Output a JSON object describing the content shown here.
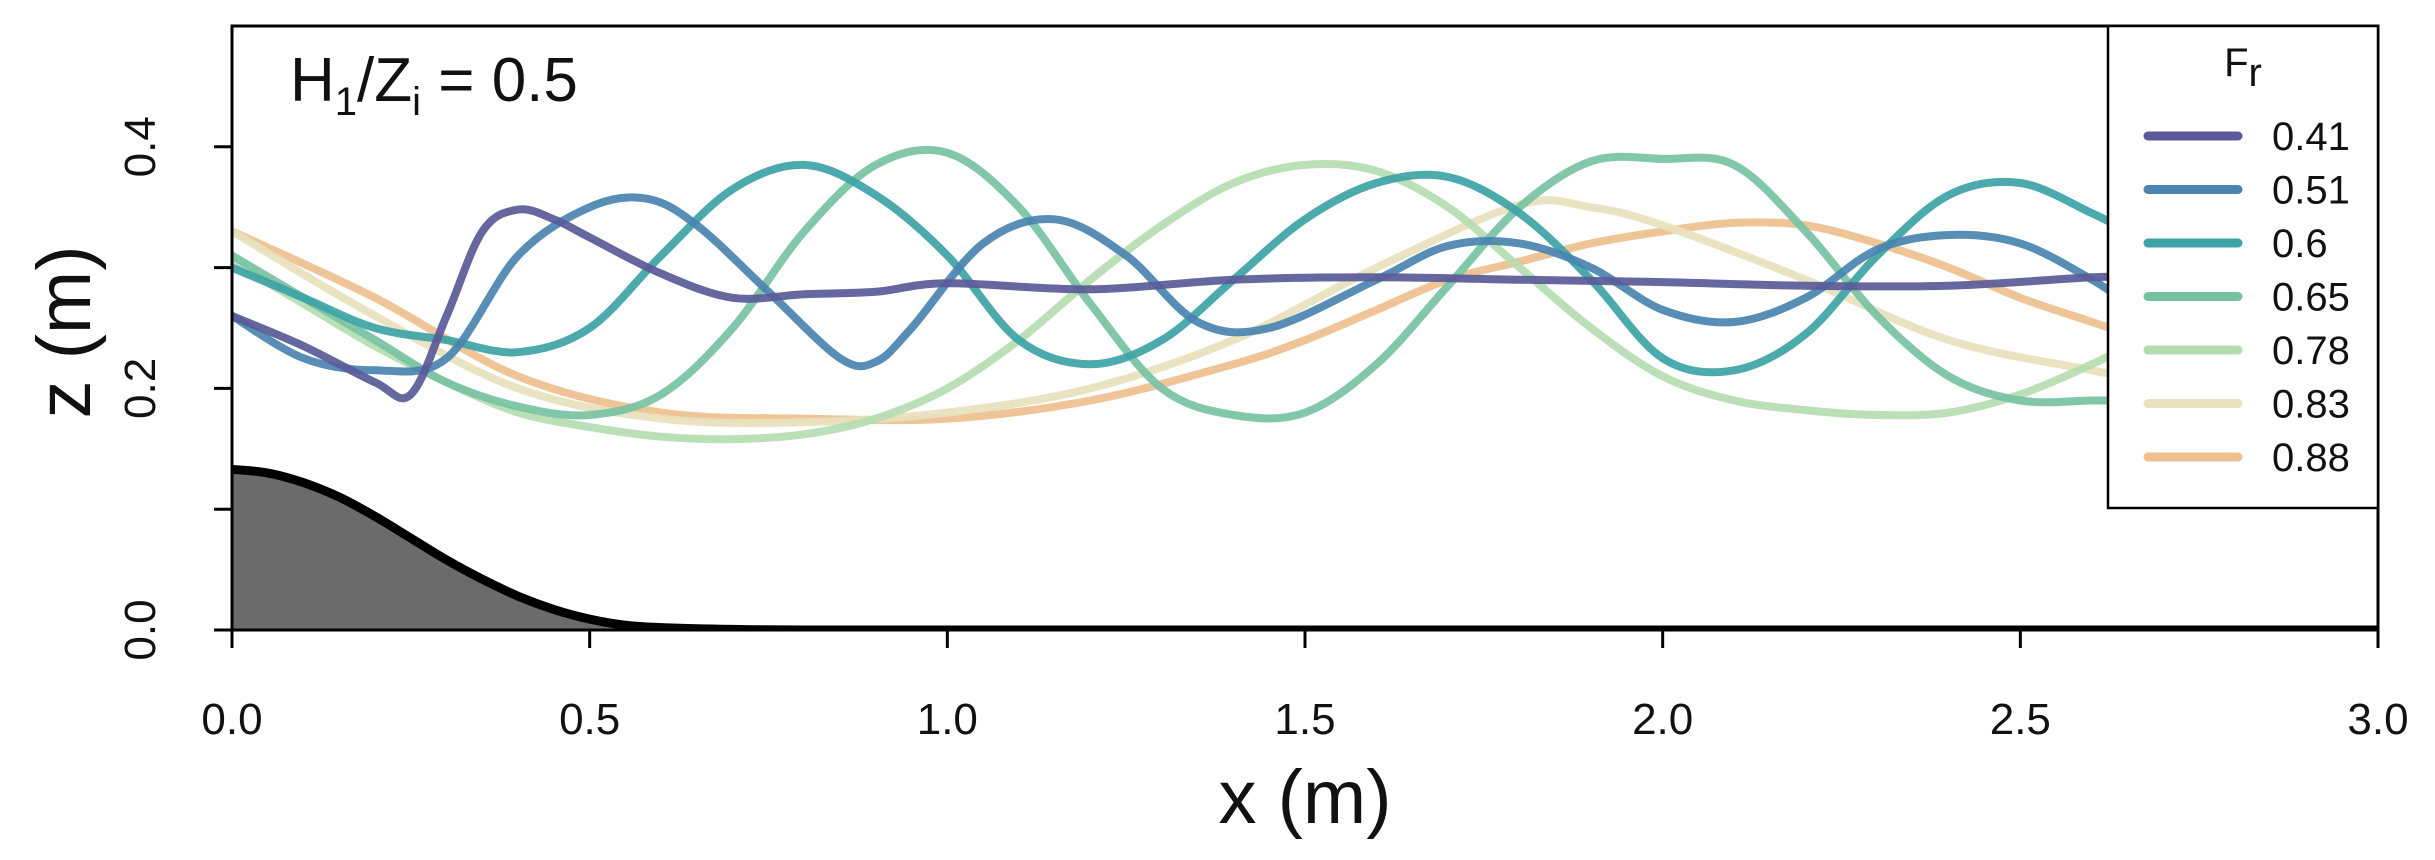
{
  "chart_data": {
    "type": "line",
    "xlabel": "x (m)",
    "ylabel": "z (m)",
    "xlim": [
      0,
      3.0
    ],
    "ylim": [
      0,
      0.5
    ],
    "xticks": [
      "0.0",
      "0.5",
      "1.0",
      "1.5",
      "2.0",
      "2.5",
      "3.0"
    ],
    "yticks": [
      "0.0",
      "0.2",
      "0.4"
    ],
    "grid": false,
    "legend_position": "top-right",
    "legend_title": {
      "main": "F",
      "sub": "r"
    },
    "annotation": {
      "part1": "H",
      "sub1": "1",
      "part2": "/Z",
      "sub2": "i",
      "part3": " = 0.5"
    },
    "topography": {
      "color": "#6b6b6b",
      "x": [
        0,
        0.05,
        0.1,
        0.15,
        0.2,
        0.25,
        0.3,
        0.35,
        0.4,
        0.45,
        0.5,
        0.55,
        0.6,
        0.7,
        0.8,
        1.0,
        3.0
      ],
      "y": [
        0.133,
        0.13,
        0.122,
        0.11,
        0.094,
        0.076,
        0.058,
        0.042,
        0.028,
        0.017,
        0.009,
        0.004,
        0.002,
        0.0005,
        0.0,
        0.0,
        0.0
      ]
    },
    "series": [
      {
        "name": "0.41",
        "color": "#5a5a98",
        "x": [
          0,
          0.1,
          0.2,
          0.25,
          0.3,
          0.35,
          0.4,
          0.45,
          0.5,
          0.6,
          0.7,
          0.8,
          0.9,
          1.0,
          1.2,
          1.4,
          1.6,
          1.8,
          2.0,
          2.2,
          2.4,
          2.6,
          2.65
        ],
        "y": [
          0.26,
          0.235,
          0.205,
          0.195,
          0.26,
          0.33,
          0.348,
          0.34,
          0.325,
          0.295,
          0.275,
          0.278,
          0.28,
          0.287,
          0.282,
          0.29,
          0.292,
          0.29,
          0.288,
          0.285,
          0.285,
          0.292,
          0.292
        ]
      },
      {
        "name": "0.51",
        "color": "#4a84b0",
        "x": [
          0,
          0.1,
          0.2,
          0.3,
          0.4,
          0.5,
          0.58,
          0.65,
          0.75,
          0.85,
          0.9,
          0.95,
          1.05,
          1.15,
          1.25,
          1.35,
          1.45,
          1.6,
          1.7,
          1.8,
          1.9,
          2.0,
          2.1,
          2.2,
          2.3,
          2.4,
          2.5,
          2.6,
          2.65
        ],
        "y": [
          0.26,
          0.225,
          0.215,
          0.225,
          0.31,
          0.35,
          0.357,
          0.335,
          0.28,
          0.225,
          0.222,
          0.25,
          0.32,
          0.34,
          0.31,
          0.255,
          0.25,
          0.29,
          0.318,
          0.32,
          0.3,
          0.265,
          0.255,
          0.275,
          0.315,
          0.327,
          0.32,
          0.29,
          0.27
        ]
      },
      {
        "name": "0.6",
        "color": "#3da3a6",
        "x": [
          0,
          0.1,
          0.2,
          0.3,
          0.4,
          0.5,
          0.6,
          0.7,
          0.8,
          0.9,
          1.0,
          1.1,
          1.2,
          1.3,
          1.4,
          1.5,
          1.6,
          1.7,
          1.8,
          1.9,
          2.0,
          2.1,
          2.2,
          2.3,
          2.4,
          2.5,
          2.6,
          2.65
        ],
        "y": [
          0.3,
          0.275,
          0.25,
          0.24,
          0.23,
          0.25,
          0.31,
          0.365,
          0.385,
          0.36,
          0.31,
          0.24,
          0.22,
          0.24,
          0.29,
          0.34,
          0.37,
          0.375,
          0.345,
          0.29,
          0.225,
          0.215,
          0.245,
          0.31,
          0.36,
          0.37,
          0.345,
          0.33
        ]
      },
      {
        "name": "0.65",
        "color": "#77c2a3",
        "x": [
          0,
          0.1,
          0.2,
          0.3,
          0.4,
          0.5,
          0.6,
          0.7,
          0.8,
          0.9,
          1.0,
          1.1,
          1.2,
          1.3,
          1.4,
          1.5,
          1.6,
          1.7,
          1.8,
          1.9,
          2.0,
          2.1,
          2.2,
          2.3,
          2.4,
          2.5,
          2.6,
          2.65
        ],
        "y": [
          0.31,
          0.275,
          0.24,
          0.205,
          0.185,
          0.178,
          0.195,
          0.25,
          0.33,
          0.385,
          0.395,
          0.35,
          0.27,
          0.2,
          0.178,
          0.18,
          0.22,
          0.285,
          0.35,
          0.388,
          0.39,
          0.385,
          0.33,
          0.26,
          0.21,
          0.19,
          0.19,
          0.19
        ]
      },
      {
        "name": "0.78",
        "color": "#b5dcb0",
        "x": [
          0,
          0.1,
          0.2,
          0.3,
          0.4,
          0.5,
          0.6,
          0.7,
          0.8,
          0.9,
          1.0,
          1.1,
          1.2,
          1.3,
          1.4,
          1.5,
          1.6,
          1.7,
          1.8,
          1.9,
          2.0,
          2.1,
          2.2,
          2.3,
          2.4,
          2.5,
          2.6,
          2.65
        ],
        "y": [
          0.305,
          0.27,
          0.235,
          0.205,
          0.18,
          0.168,
          0.16,
          0.158,
          0.162,
          0.175,
          0.2,
          0.24,
          0.29,
          0.335,
          0.37,
          0.385,
          0.38,
          0.35,
          0.3,
          0.25,
          0.21,
          0.19,
          0.182,
          0.178,
          0.18,
          0.195,
          0.22,
          0.235
        ]
      },
      {
        "name": "0.83",
        "color": "#e8e1bd",
        "x": [
          0,
          0.2,
          0.4,
          0.6,
          0.8,
          1.0,
          1.2,
          1.4,
          1.6,
          1.8,
          1.9,
          2.0,
          2.2,
          2.4,
          2.6,
          2.65
        ],
        "y": [
          0.33,
          0.26,
          0.2,
          0.175,
          0.172,
          0.18,
          0.2,
          0.24,
          0.3,
          0.352,
          0.35,
          0.335,
          0.29,
          0.24,
          0.215,
          0.21
        ]
      },
      {
        "name": "0.88",
        "color": "#eec08f",
        "x": [
          0,
          0.2,
          0.4,
          0.6,
          0.8,
          1.0,
          1.2,
          1.4,
          1.5,
          1.6,
          1.7,
          1.8,
          1.9,
          2.0,
          2.1,
          2.2,
          2.3,
          2.4,
          2.5,
          2.6,
          2.65
        ],
        "y": [
          0.33,
          0.275,
          0.21,
          0.18,
          0.175,
          0.175,
          0.19,
          0.22,
          0.24,
          0.265,
          0.29,
          0.305,
          0.32,
          0.33,
          0.337,
          0.335,
          0.32,
          0.3,
          0.275,
          0.255,
          0.245
        ]
      }
    ]
  }
}
